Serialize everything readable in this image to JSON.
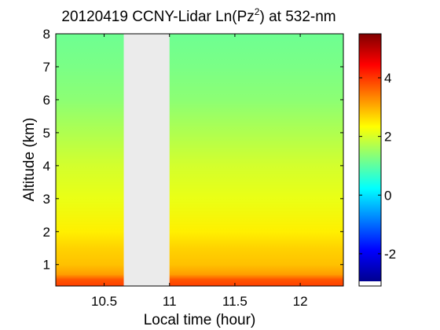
{
  "chart_data": {
    "type": "heatmap",
    "title": {
      "main": "20120419 CCNY-Lidar Ln(Pz",
      "superscript": "2",
      "suffix": ") at 532-nm"
    },
    "xlabel": "Local time (hour)",
    "ylabel": "Altitude (km)",
    "xlim": [
      10.13,
      12.33
    ],
    "ylim": [
      0.35,
      8.0
    ],
    "x_ticks": [
      10.5,
      11,
      11.5,
      12
    ],
    "x_tick_labels": [
      "10.5",
      "11",
      "11.5",
      "12"
    ],
    "y_ticks": [
      1,
      2,
      3,
      4,
      5,
      6,
      7,
      8
    ],
    "y_tick_labels": [
      "1",
      "2",
      "3",
      "4",
      "5",
      "6",
      "7",
      "8"
    ],
    "grid": false,
    "no_data_interval": {
      "x_start": 10.65,
      "x_end": 11.0,
      "color": "#ebebeb"
    },
    "altitude_profile": [
      {
        "altitude": 0.35,
        "value": 3.9
      },
      {
        "altitude": 0.55,
        "value": 3.7
      },
      {
        "altitude": 0.7,
        "value": 3.1
      },
      {
        "altitude": 1.0,
        "value": 2.8
      },
      {
        "altitude": 1.5,
        "value": 2.65
      },
      {
        "altitude": 2.0,
        "value": 2.4
      },
      {
        "altitude": 3.0,
        "value": 2.1
      },
      {
        "altitude": 4.0,
        "value": 1.9
      },
      {
        "altitude": 5.0,
        "value": 1.6
      },
      {
        "altitude": 6.0,
        "value": 1.3
      },
      {
        "altitude": 7.0,
        "value": 1.15
      },
      {
        "altitude": 8.0,
        "value": 1.05
      }
    ],
    "colorbar": {
      "range": [
        -3.1,
        5.5
      ],
      "ticks": [
        -2,
        0,
        2,
        4
      ],
      "tick_labels": [
        "-2",
        "0",
        "2",
        "4"
      ],
      "colormap": "jet",
      "colors": [
        "#00008f",
        "#0000ff",
        "#0080ff",
        "#00ffff",
        "#80ff80",
        "#ffff00",
        "#ff8000",
        "#ff0000",
        "#800000"
      ]
    }
  }
}
